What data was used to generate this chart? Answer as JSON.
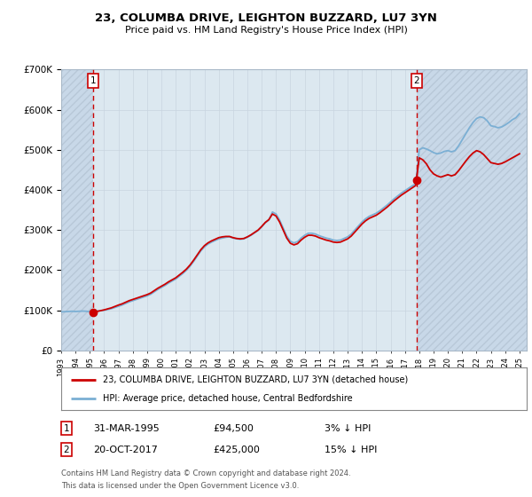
{
  "title": "23, COLUMBA DRIVE, LEIGHTON BUZZARD, LU7 3YN",
  "subtitle": "Price paid vs. HM Land Registry's House Price Index (HPI)",
  "legend_line1": "23, COLUMBA DRIVE, LEIGHTON BUZZARD, LU7 3YN (detached house)",
  "legend_line2": "HPI: Average price, detached house, Central Bedfordshire",
  "footnote1": "Contains HM Land Registry data © Crown copyright and database right 2024.",
  "footnote2": "This data is licensed under the Open Government Licence v3.0.",
  "sale1_label": "1",
  "sale1_date": "31-MAR-1995",
  "sale1_price": "£94,500",
  "sale1_note": "3% ↓ HPI",
  "sale2_label": "2",
  "sale2_date": "20-OCT-2017",
  "sale2_price": "£425,000",
  "sale2_note": "15% ↓ HPI",
  "sale1_x": 1995.25,
  "sale2_x": 2017.8,
  "sale1_price_val": 94500,
  "sale2_price_val": 425000,
  "hpi_color": "#7bafd4",
  "sale_line_color": "#cc0000",
  "marker_color": "#cc0000",
  "grid_color": "#c8d4e0",
  "plot_bg_color": "#dce8f0",
  "hatch_edge_color": "#b8c8d8",
  "ylim": [
    0,
    700000
  ],
  "xlim_start": 1993,
  "xlim_end": 2025.5,
  "yticks": [
    0,
    100000,
    200000,
    300000,
    400000,
    500000,
    600000,
    700000
  ],
  "ytick_labels": [
    "£0",
    "£100K",
    "£200K",
    "£300K",
    "£400K",
    "£500K",
    "£600K",
    "£700K"
  ],
  "hpi_data": [
    [
      1993.0,
      96000
    ],
    [
      1993.25,
      96500
    ],
    [
      1993.5,
      97000
    ],
    [
      1993.75,
      97500
    ],
    [
      1994.0,
      97000
    ],
    [
      1994.25,
      97500
    ],
    [
      1994.5,
      98000
    ],
    [
      1994.75,
      97500
    ],
    [
      1995.0,
      96500
    ],
    [
      1995.25,
      97000
    ],
    [
      1995.5,
      98000
    ],
    [
      1995.75,
      99000
    ],
    [
      1996.0,
      100000
    ],
    [
      1996.25,
      102000
    ],
    [
      1996.5,
      104000
    ],
    [
      1996.75,
      107000
    ],
    [
      1997.0,
      110000
    ],
    [
      1997.25,
      113000
    ],
    [
      1997.5,
      117000
    ],
    [
      1997.75,
      121000
    ],
    [
      1998.0,
      124000
    ],
    [
      1998.25,
      127000
    ],
    [
      1998.5,
      130000
    ],
    [
      1998.75,
      133000
    ],
    [
      1999.0,
      136000
    ],
    [
      1999.25,
      140000
    ],
    [
      1999.5,
      146000
    ],
    [
      1999.75,
      152000
    ],
    [
      2000.0,
      157000
    ],
    [
      2000.25,
      162000
    ],
    [
      2000.5,
      168000
    ],
    [
      2000.75,
      173000
    ],
    [
      2001.0,
      178000
    ],
    [
      2001.25,
      185000
    ],
    [
      2001.5,
      192000
    ],
    [
      2001.75,
      200000
    ],
    [
      2002.0,
      210000
    ],
    [
      2002.25,
      222000
    ],
    [
      2002.5,
      235000
    ],
    [
      2002.75,
      248000
    ],
    [
      2003.0,
      258000
    ],
    [
      2003.25,
      265000
    ],
    [
      2003.5,
      270000
    ],
    [
      2003.75,
      274000
    ],
    [
      2004.0,
      278000
    ],
    [
      2004.25,
      280000
    ],
    [
      2004.5,
      282000
    ],
    [
      2004.75,
      283000
    ],
    [
      2005.0,
      280000
    ],
    [
      2005.25,
      278000
    ],
    [
      2005.5,
      277000
    ],
    [
      2005.75,
      278000
    ],
    [
      2006.0,
      282000
    ],
    [
      2006.25,
      287000
    ],
    [
      2006.5,
      293000
    ],
    [
      2006.75,
      299000
    ],
    [
      2007.0,
      308000
    ],
    [
      2007.25,
      318000
    ],
    [
      2007.5,
      325000
    ],
    [
      2007.75,
      345000
    ],
    [
      2008.0,
      340000
    ],
    [
      2008.25,
      325000
    ],
    [
      2008.5,
      305000
    ],
    [
      2008.75,
      285000
    ],
    [
      2009.0,
      272000
    ],
    [
      2009.25,
      268000
    ],
    [
      2009.5,
      271000
    ],
    [
      2009.75,
      280000
    ],
    [
      2010.0,
      287000
    ],
    [
      2010.25,
      292000
    ],
    [
      2010.5,
      292000
    ],
    [
      2010.75,
      290000
    ],
    [
      2011.0,
      286000
    ],
    [
      2011.25,
      283000
    ],
    [
      2011.5,
      280000
    ],
    [
      2011.75,
      278000
    ],
    [
      2012.0,
      275000
    ],
    [
      2012.25,
      274000
    ],
    [
      2012.5,
      275000
    ],
    [
      2012.75,
      279000
    ],
    [
      2013.0,
      283000
    ],
    [
      2013.25,
      290000
    ],
    [
      2013.5,
      300000
    ],
    [
      2013.75,
      310000
    ],
    [
      2014.0,
      320000
    ],
    [
      2014.25,
      328000
    ],
    [
      2014.5,
      334000
    ],
    [
      2014.75,
      338000
    ],
    [
      2015.0,
      342000
    ],
    [
      2015.25,
      348000
    ],
    [
      2015.5,
      355000
    ],
    [
      2015.75,
      362000
    ],
    [
      2016.0,
      370000
    ],
    [
      2016.25,
      378000
    ],
    [
      2016.5,
      385000
    ],
    [
      2016.75,
      392000
    ],
    [
      2017.0,
      398000
    ],
    [
      2017.25,
      404000
    ],
    [
      2017.5,
      410000
    ],
    [
      2017.75,
      415000
    ],
    [
      2018.0,
      500000
    ],
    [
      2018.25,
      505000
    ],
    [
      2018.5,
      502000
    ],
    [
      2018.75,
      498000
    ],
    [
      2019.0,
      493000
    ],
    [
      2019.25,
      490000
    ],
    [
      2019.5,
      492000
    ],
    [
      2019.75,
      496000
    ],
    [
      2020.0,
      498000
    ],
    [
      2020.25,
      495000
    ],
    [
      2020.5,
      498000
    ],
    [
      2020.75,
      510000
    ],
    [
      2021.0,
      525000
    ],
    [
      2021.25,
      540000
    ],
    [
      2021.5,
      555000
    ],
    [
      2021.75,
      568000
    ],
    [
      2022.0,
      578000
    ],
    [
      2022.25,
      582000
    ],
    [
      2022.5,
      580000
    ],
    [
      2022.75,
      572000
    ],
    [
      2023.0,
      560000
    ],
    [
      2023.25,
      558000
    ],
    [
      2023.5,
      555000
    ],
    [
      2023.75,
      557000
    ],
    [
      2024.0,
      562000
    ],
    [
      2024.25,
      568000
    ],
    [
      2024.5,
      575000
    ],
    [
      2024.75,
      580000
    ],
    [
      2025.0,
      590000
    ]
  ],
  "sale_red_data": [
    [
      1995.25,
      94500
    ],
    [
      1995.5,
      97000
    ],
    [
      1995.75,
      99000
    ],
    [
      1996.0,
      101000
    ],
    [
      1996.25,
      103500
    ],
    [
      1996.5,
      106000
    ],
    [
      1996.75,
      109500
    ],
    [
      1997.0,
      113000
    ],
    [
      1997.25,
      116000
    ],
    [
      1997.5,
      120000
    ],
    [
      1997.75,
      124000
    ],
    [
      1998.0,
      127000
    ],
    [
      1998.25,
      130000
    ],
    [
      1998.5,
      133000
    ],
    [
      1998.75,
      136000
    ],
    [
      1999.0,
      139000
    ],
    [
      1999.25,
      143000
    ],
    [
      1999.5,
      149000
    ],
    [
      1999.75,
      155000
    ],
    [
      2000.0,
      160000
    ],
    [
      2000.25,
      165000
    ],
    [
      2000.5,
      171000
    ],
    [
      2000.75,
      176000
    ],
    [
      2001.0,
      181000
    ],
    [
      2001.25,
      188000
    ],
    [
      2001.5,
      195000
    ],
    [
      2001.75,
      203000
    ],
    [
      2002.0,
      213000
    ],
    [
      2002.25,
      225000
    ],
    [
      2002.5,
      238000
    ],
    [
      2002.75,
      251000
    ],
    [
      2003.0,
      261000
    ],
    [
      2003.25,
      268000
    ],
    [
      2003.5,
      273000
    ],
    [
      2003.75,
      277000
    ],
    [
      2004.0,
      281000
    ],
    [
      2004.25,
      283000
    ],
    [
      2004.5,
      284000
    ],
    [
      2004.75,
      284000
    ],
    [
      2005.0,
      281000
    ],
    [
      2005.25,
      279000
    ],
    [
      2005.5,
      278000
    ],
    [
      2005.75,
      279000
    ],
    [
      2006.0,
      283000
    ],
    [
      2006.25,
      288000
    ],
    [
      2006.5,
      294000
    ],
    [
      2006.75,
      300000
    ],
    [
      2007.0,
      309000
    ],
    [
      2007.25,
      319000
    ],
    [
      2007.5,
      326000
    ],
    [
      2007.75,
      340000
    ],
    [
      2008.0,
      335000
    ],
    [
      2008.25,
      320000
    ],
    [
      2008.5,
      300000
    ],
    [
      2008.75,
      280000
    ],
    [
      2009.0,
      267000
    ],
    [
      2009.25,
      263000
    ],
    [
      2009.5,
      266000
    ],
    [
      2009.75,
      275000
    ],
    [
      2010.0,
      282000
    ],
    [
      2010.25,
      287000
    ],
    [
      2010.5,
      287000
    ],
    [
      2010.75,
      285000
    ],
    [
      2011.0,
      281000
    ],
    [
      2011.25,
      278000
    ],
    [
      2011.5,
      275000
    ],
    [
      2011.75,
      273000
    ],
    [
      2012.0,
      270000
    ],
    [
      2012.25,
      269000
    ],
    [
      2012.5,
      270000
    ],
    [
      2012.75,
      274000
    ],
    [
      2013.0,
      278000
    ],
    [
      2013.25,
      285000
    ],
    [
      2013.5,
      295000
    ],
    [
      2013.75,
      305000
    ],
    [
      2014.0,
      315000
    ],
    [
      2014.25,
      323000
    ],
    [
      2014.5,
      329000
    ],
    [
      2014.75,
      333000
    ],
    [
      2015.0,
      337000
    ],
    [
      2015.25,
      343000
    ],
    [
      2015.5,
      350000
    ],
    [
      2015.75,
      357000
    ],
    [
      2016.0,
      365000
    ],
    [
      2016.25,
      373000
    ],
    [
      2016.5,
      380000
    ],
    [
      2016.75,
      387000
    ],
    [
      2017.0,
      393000
    ],
    [
      2017.25,
      399000
    ],
    [
      2017.5,
      405000
    ],
    [
      2017.75,
      411000
    ],
    [
      2017.8,
      425000
    ],
    [
      2018.0,
      480000
    ],
    [
      2018.25,
      475000
    ],
    [
      2018.5,
      465000
    ],
    [
      2018.75,
      450000
    ],
    [
      2019.0,
      440000
    ],
    [
      2019.25,
      435000
    ],
    [
      2019.5,
      432000
    ],
    [
      2019.75,
      435000
    ],
    [
      2020.0,
      438000
    ],
    [
      2020.25,
      435000
    ],
    [
      2020.5,
      438000
    ],
    [
      2020.75,
      448000
    ],
    [
      2021.0,
      460000
    ],
    [
      2021.25,
      472000
    ],
    [
      2021.5,
      483000
    ],
    [
      2021.75,
      492000
    ],
    [
      2022.0,
      498000
    ],
    [
      2022.25,
      495000
    ],
    [
      2022.5,
      488000
    ],
    [
      2022.75,
      478000
    ],
    [
      2023.0,
      468000
    ],
    [
      2023.25,
      466000
    ],
    [
      2023.5,
      464000
    ],
    [
      2023.75,
      466000
    ],
    [
      2024.0,
      470000
    ],
    [
      2024.25,
      475000
    ],
    [
      2024.5,
      480000
    ],
    [
      2024.75,
      485000
    ],
    [
      2025.0,
      490000
    ]
  ]
}
